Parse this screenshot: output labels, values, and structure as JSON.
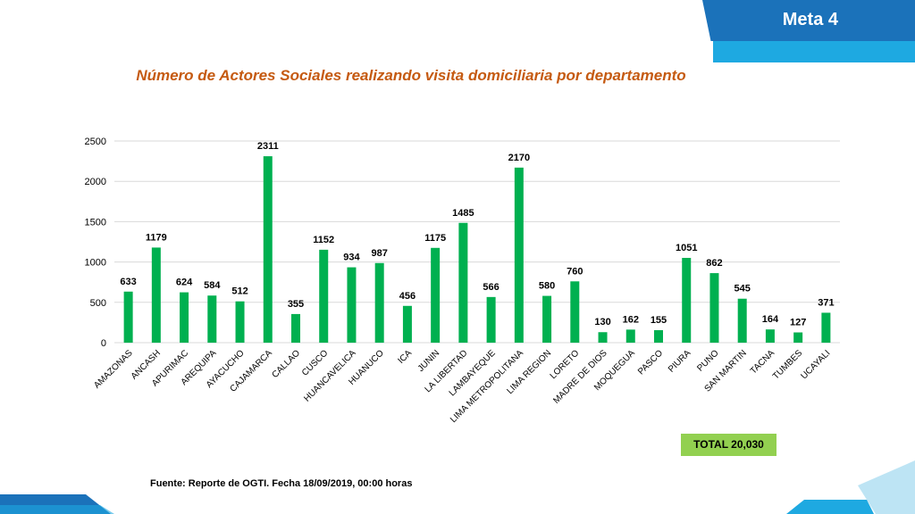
{
  "header": {
    "meta_label": "Meta 4"
  },
  "title": "Número de Actores Sociales realizando visita domiciliaria por departamento",
  "source_text": "Fuente: Reporte de OGTI. Fecha 18/09/2019, 00:00 horas",
  "total_label": "TOTAL 20,030",
  "colors": {
    "bar": "#00b050",
    "title": "#c55a11",
    "banner_dark": "#1b72ba",
    "banner_light": "#1ea9e1",
    "total_bg": "#92d050"
  },
  "chart_data": {
    "type": "bar",
    "categories": [
      "AMAZONAS",
      "ANCASH",
      "APURIMAC",
      "AREQUIPA",
      "AYACUCHO",
      "CAJAMARCA",
      "CALLAO",
      "CUSCO",
      "HUANCAVELICA",
      "HUANUCO",
      "ICA",
      "JUNIN",
      "LA LIBERTAD",
      "LAMBAYEQUE",
      "LIMA METROPOLITANA",
      "LIMA REGION",
      "LORETO",
      "MADRE DE DIOS",
      "MOQUEGUA",
      "PASCO",
      "PIURA",
      "PUNO",
      "SAN MARTIN",
      "TACNA",
      "TUMBES",
      "UCAYALI"
    ],
    "values": [
      633,
      1179,
      624,
      584,
      512,
      2311,
      355,
      1152,
      934,
      987,
      456,
      1175,
      1485,
      566,
      2170,
      580,
      760,
      130,
      162,
      155,
      1051,
      862,
      545,
      164,
      127,
      371
    ],
    "ylim": [
      0,
      2500
    ],
    "yticks": [
      0,
      500,
      1000,
      1500,
      2000,
      2500
    ],
    "grid": true,
    "xlabel": "",
    "ylabel": ""
  }
}
